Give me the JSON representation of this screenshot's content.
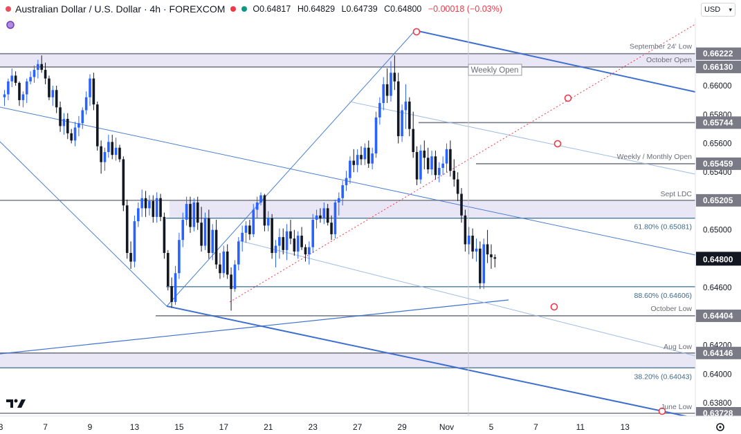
{
  "header": {
    "title": "Australian Dollar / U.S. Dollar · 4h · FOREXCOM",
    "open": "O0.64817",
    "high": "H0.64829",
    "low": "L0.64739",
    "close": "C0.64800",
    "change": "−0.00018 (−0.03%)"
  },
  "currency_select": {
    "label": "USD"
  },
  "chart_data": {
    "type": "candlestick",
    "symbol": "AUDUSD",
    "timeframe": "4h",
    "ylim": [
      0.6366,
      0.6643
    ],
    "y_ticks": [
      0.66,
      0.658,
      0.656,
      0.654,
      0.65,
      0.646,
      0.642,
      0.64,
      0.638
    ],
    "y_tick_labels": [
      "0.66000",
      "0.65800",
      "0.65600",
      "0.65400",
      "0.65000",
      "0.64600",
      "0.64200",
      "0.64000",
      "0.63800"
    ],
    "x_ticks": [
      {
        "label": "3",
        "bar": -1
      },
      {
        "label": "7",
        "bar": 11
      },
      {
        "label": "9",
        "bar": 23
      },
      {
        "label": "13",
        "bar": 35
      },
      {
        "label": "15",
        "bar": 47
      },
      {
        "label": "17",
        "bar": 59
      },
      {
        "label": "21",
        "bar": 71
      },
      {
        "label": "23",
        "bar": 83
      },
      {
        "label": "27",
        "bar": 95
      },
      {
        "label": "29",
        "bar": 107
      },
      {
        "label": "Nov",
        "bar": 119
      },
      {
        "label": "5",
        "bar": 131
      },
      {
        "label": "7",
        "bar": 143
      },
      {
        "label": "11",
        "bar": 155
      },
      {
        "label": "13",
        "bar": 167
      }
    ],
    "ohlc": [
      [
        0.6592,
        0.6597,
        0.6586,
        0.6594
      ],
      [
        0.6594,
        0.6605,
        0.659,
        0.6603
      ],
      [
        0.6603,
        0.6612,
        0.6599,
        0.6607
      ],
      [
        0.6607,
        0.661,
        0.66,
        0.6602
      ],
      [
        0.6602,
        0.6603,
        0.6586,
        0.659
      ],
      [
        0.659,
        0.6596,
        0.6585,
        0.6594
      ],
      [
        0.6594,
        0.6605,
        0.6588,
        0.6603
      ],
      [
        0.6603,
        0.661,
        0.6601,
        0.6606
      ],
      [
        0.6606,
        0.6614,
        0.6602,
        0.6611
      ],
      [
        0.6611,
        0.6618,
        0.6605,
        0.6615
      ],
      [
        0.6615,
        0.6621,
        0.6609,
        0.6611
      ],
      [
        0.6611,
        0.6616,
        0.6601,
        0.6605
      ],
      [
        0.6605,
        0.6607,
        0.659,
        0.6592
      ],
      [
        0.6592,
        0.66,
        0.6586,
        0.6597
      ],
      [
        0.6597,
        0.66,
        0.6581,
        0.6585
      ],
      [
        0.6585,
        0.6589,
        0.6568,
        0.6572
      ],
      [
        0.6572,
        0.6581,
        0.6566,
        0.6577
      ],
      [
        0.6577,
        0.6581,
        0.6563,
        0.6567
      ],
      [
        0.6567,
        0.657,
        0.656,
        0.6562
      ],
      [
        0.6562,
        0.6575,
        0.6558,
        0.6571
      ],
      [
        0.6571,
        0.6579,
        0.6565,
        0.6574
      ],
      [
        0.6574,
        0.6585,
        0.657,
        0.6583
      ],
      [
        0.6583,
        0.6596,
        0.658,
        0.6592
      ],
      [
        0.6592,
        0.6608,
        0.6586,
        0.6605
      ],
      [
        0.6605,
        0.6609,
        0.6583,
        0.6587
      ],
      [
        0.6587,
        0.6589,
        0.6555,
        0.6558
      ],
      [
        0.6558,
        0.6562,
        0.6539,
        0.6547
      ],
      [
        0.6547,
        0.6557,
        0.6541,
        0.6554
      ],
      [
        0.6554,
        0.6566,
        0.655,
        0.6561
      ],
      [
        0.6561,
        0.6566,
        0.6549,
        0.6552
      ],
      [
        0.6552,
        0.6564,
        0.6548,
        0.6557
      ],
      [
        0.6557,
        0.6559,
        0.6547,
        0.6549
      ],
      [
        0.6549,
        0.6551,
        0.6513,
        0.6517
      ],
      [
        0.6517,
        0.6521,
        0.648,
        0.6484
      ],
      [
        0.6484,
        0.6492,
        0.6473,
        0.6478
      ],
      [
        0.6478,
        0.651,
        0.6474,
        0.6506
      ],
      [
        0.6506,
        0.6519,
        0.6502,
        0.6515
      ],
      [
        0.6515,
        0.6528,
        0.6509,
        0.6522
      ],
      [
        0.6522,
        0.6527,
        0.6509,
        0.6515
      ],
      [
        0.6515,
        0.6524,
        0.651,
        0.652
      ],
      [
        0.652,
        0.6524,
        0.6505,
        0.6509
      ],
      [
        0.6509,
        0.6526,
        0.6505,
        0.6522
      ],
      [
        0.6522,
        0.6525,
        0.6506,
        0.6509
      ],
      [
        0.6509,
        0.6512,
        0.648,
        0.6484
      ],
      [
        0.6484,
        0.6486,
        0.6458,
        0.6461
      ],
      [
        0.6461,
        0.6467,
        0.6446,
        0.645
      ],
      [
        0.645,
        0.6475,
        0.6448,
        0.647
      ],
      [
        0.647,
        0.6498,
        0.6466,
        0.6493
      ],
      [
        0.6493,
        0.6512,
        0.6488,
        0.6507
      ],
      [
        0.6507,
        0.6523,
        0.6503,
        0.6518
      ],
      [
        0.6518,
        0.6523,
        0.6498,
        0.6502
      ],
      [
        0.6502,
        0.6522,
        0.6499,
        0.6519
      ],
      [
        0.6519,
        0.6523,
        0.65,
        0.6505
      ],
      [
        0.6505,
        0.6516,
        0.6485,
        0.6489
      ],
      [
        0.6489,
        0.6512,
        0.6486,
        0.6508
      ],
      [
        0.6508,
        0.6514,
        0.648,
        0.6484
      ],
      [
        0.6484,
        0.6504,
        0.6479,
        0.65
      ],
      [
        0.65,
        0.6507,
        0.6473,
        0.6476
      ],
      [
        0.6476,
        0.6484,
        0.6466,
        0.647
      ],
      [
        0.647,
        0.6489,
        0.6467,
        0.6485
      ],
      [
        0.6485,
        0.649,
        0.6466,
        0.6469
      ],
      [
        0.6469,
        0.6474,
        0.6444,
        0.6459
      ],
      [
        0.6459,
        0.6479,
        0.6457,
        0.6476
      ],
      [
        0.6476,
        0.6495,
        0.6472,
        0.6492
      ],
      [
        0.6492,
        0.6503,
        0.6485,
        0.6498
      ],
      [
        0.6498,
        0.6506,
        0.6491,
        0.6503
      ],
      [
        0.6503,
        0.6507,
        0.6493,
        0.6497
      ],
      [
        0.6497,
        0.6518,
        0.6495,
        0.6514
      ],
      [
        0.6514,
        0.6523,
        0.6508,
        0.6519
      ],
      [
        0.6519,
        0.6526,
        0.6517,
        0.6524
      ],
      [
        0.6524,
        0.6525,
        0.6499,
        0.6503
      ],
      [
        0.6503,
        0.6513,
        0.6499,
        0.6508
      ],
      [
        0.6508,
        0.6511,
        0.648,
        0.6484
      ],
      [
        0.6484,
        0.6493,
        0.6474,
        0.6489
      ],
      [
        0.6489,
        0.6501,
        0.648,
        0.6495
      ],
      [
        0.6495,
        0.6501,
        0.6483,
        0.6486
      ],
      [
        0.6486,
        0.6504,
        0.6479,
        0.6499
      ],
      [
        0.6499,
        0.6507,
        0.649,
        0.6494
      ],
      [
        0.6494,
        0.65,
        0.6482,
        0.6485
      ],
      [
        0.6485,
        0.6499,
        0.648,
        0.6496
      ],
      [
        0.6496,
        0.6502,
        0.6486,
        0.6488
      ],
      [
        0.6488,
        0.649,
        0.6478,
        0.6483
      ],
      [
        0.6483,
        0.6492,
        0.6476,
        0.6488
      ],
      [
        0.6488,
        0.6511,
        0.6484,
        0.6507
      ],
      [
        0.6507,
        0.6514,
        0.6501,
        0.651
      ],
      [
        0.651,
        0.6515,
        0.6505,
        0.6508
      ],
      [
        0.6508,
        0.6519,
        0.6504,
        0.6515
      ],
      [
        0.6515,
        0.6518,
        0.6503,
        0.6505
      ],
      [
        0.6505,
        0.651,
        0.6493,
        0.6497
      ],
      [
        0.6497,
        0.6521,
        0.6494,
        0.6519
      ],
      [
        0.6519,
        0.6526,
        0.651,
        0.6522
      ],
      [
        0.6522,
        0.6534,
        0.6517,
        0.6531
      ],
      [
        0.6531,
        0.6541,
        0.6527,
        0.6536
      ],
      [
        0.6536,
        0.6551,
        0.6532,
        0.6548
      ],
      [
        0.6548,
        0.6556,
        0.654,
        0.6545
      ],
      [
        0.6545,
        0.6556,
        0.654,
        0.6552
      ],
      [
        0.6552,
        0.6558,
        0.6545,
        0.6549
      ],
      [
        0.6549,
        0.656,
        0.6545,
        0.6557
      ],
      [
        0.6557,
        0.6562,
        0.6543,
        0.6546
      ],
      [
        0.6546,
        0.6557,
        0.6542,
        0.6553
      ],
      [
        0.6553,
        0.6582,
        0.655,
        0.6578
      ],
      [
        0.6578,
        0.6592,
        0.6573,
        0.6588
      ],
      [
        0.6588,
        0.6606,
        0.6583,
        0.6601
      ],
      [
        0.6601,
        0.6612,
        0.6588,
        0.6593
      ],
      [
        0.6593,
        0.6617,
        0.6589,
        0.6609
      ],
      [
        0.6609,
        0.6621,
        0.6597,
        0.6603
      ],
      [
        0.6603,
        0.6609,
        0.656,
        0.6565
      ],
      [
        0.6565,
        0.6587,
        0.6561,
        0.6583
      ],
      [
        0.6583,
        0.6601,
        0.657,
        0.6589
      ],
      [
        0.6589,
        0.6592,
        0.6565,
        0.657
      ],
      [
        0.657,
        0.6582,
        0.655,
        0.6554
      ],
      [
        0.6554,
        0.6558,
        0.6531,
        0.6535
      ],
      [
        0.6535,
        0.6559,
        0.6532,
        0.6555
      ],
      [
        0.6555,
        0.6562,
        0.6542,
        0.655
      ],
      [
        0.655,
        0.6557,
        0.6539,
        0.6542
      ],
      [
        0.6542,
        0.6555,
        0.6538,
        0.6551
      ],
      [
        0.6551,
        0.6555,
        0.6535,
        0.6538
      ],
      [
        0.6538,
        0.6547,
        0.6533,
        0.6543
      ],
      [
        0.6543,
        0.6551,
        0.6538,
        0.6546
      ],
      [
        0.6546,
        0.656,
        0.654,
        0.6556
      ],
      [
        0.6556,
        0.6562,
        0.6537,
        0.6541
      ],
      [
        0.6541,
        0.6549,
        0.653,
        0.6535
      ],
      [
        0.6535,
        0.654,
        0.652,
        0.6525
      ],
      [
        0.6525,
        0.6529,
        0.6505,
        0.651
      ],
      [
        0.651,
        0.6514,
        0.6485,
        0.649
      ],
      [
        0.649,
        0.6502,
        0.6483,
        0.6496
      ],
      [
        0.6496,
        0.6501,
        0.648,
        0.6485
      ],
      [
        0.6485,
        0.6494,
        0.6478,
        0.6487
      ],
      [
        0.6487,
        0.6492,
        0.6459,
        0.6463
      ],
      [
        0.6463,
        0.6494,
        0.6459,
        0.649
      ],
      [
        0.649,
        0.65,
        0.6477,
        0.6483
      ],
      [
        0.6483,
        0.649,
        0.6473,
        0.6481
      ],
      [
        0.6481,
        0.6483,
        0.6474,
        0.648
      ]
    ],
    "levels": [
      {
        "label": "September 24' Low",
        "price": 0.66222,
        "tag": "0.66222"
      },
      {
        "label": "October Open",
        "price": 0.6613,
        "tag": "0.66130"
      },
      {
        "label": "",
        "price": 0.65744,
        "tag": "0.65744"
      },
      {
        "label": "Weekly / Monthly Open",
        "price": 0.65459,
        "tag": "0.65459"
      },
      {
        "label": "Sept LDC",
        "price": 0.65205,
        "tag": "0.65205"
      },
      {
        "label": "61.80% (0.65081)",
        "price": 0.65081,
        "tag": ""
      },
      {
        "label": "88.60% (0.64606)",
        "price": 0.64606,
        "tag": ""
      },
      {
        "label": "October Low",
        "price": 0.64404,
        "tag": "0.64404"
      },
      {
        "label": "Aug Low",
        "price": 0.64146,
        "tag": "0.64146"
      },
      {
        "label": "38.20% (0.64043)",
        "price": 0.64043,
        "tag": ""
      },
      {
        "label": "June Low",
        "price": 0.63728,
        "tag": "0.63728"
      }
    ],
    "zones": [
      {
        "from": 0.6613,
        "to": 0.66222
      },
      {
        "from": 0.65081,
        "to": 0.65205
      },
      {
        "from": 0.64043,
        "to": 0.64146
      }
    ],
    "annotation": "Weekly Open",
    "last_price": "0.64800",
    "colors": {
      "up": "#2962ff",
      "down": "#131722",
      "trendline": "#3d7ad6",
      "level": "#787b86",
      "zone": "#e1ddf2",
      "last": "#131722",
      "marker": "#f23645"
    }
  },
  "footer": {
    "settings_icon": "gear-icon",
    "logo": "TV"
  }
}
